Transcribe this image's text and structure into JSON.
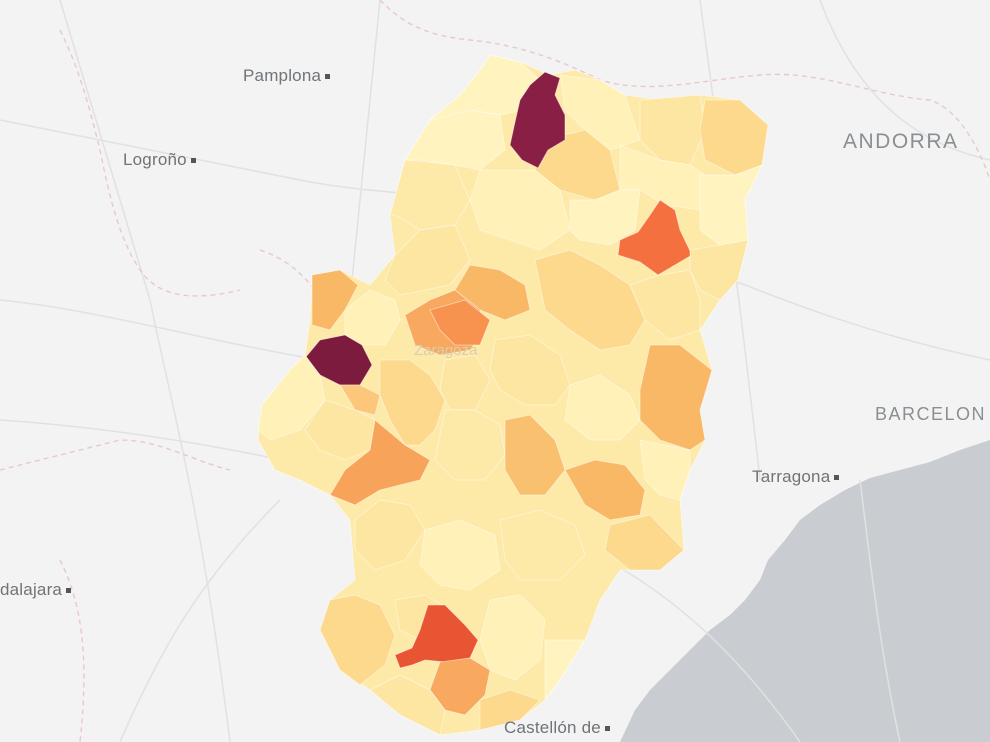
{
  "map": {
    "cities": {
      "pamplona": "Pamplona",
      "logrono": "Logroño",
      "andorra": "ANDORRA",
      "barcelona": "BARCELON",
      "tarragona": "Tarragona",
      "guadalajara": "dalajara",
      "castellon": "Castellón de",
      "zaragoza": "Zaragoza"
    },
    "choropleth_colors": {
      "level_1": "#fff4c0",
      "level_2": "#fde9a8",
      "level_3": "#fcd98c",
      "level_4": "#f9b866",
      "level_5": "#f7934f",
      "level_6": "#ee6a3a",
      "level_7": "#e2492c",
      "level_8": "#7f1c3f"
    },
    "sea_color": "#c9cdd1"
  }
}
